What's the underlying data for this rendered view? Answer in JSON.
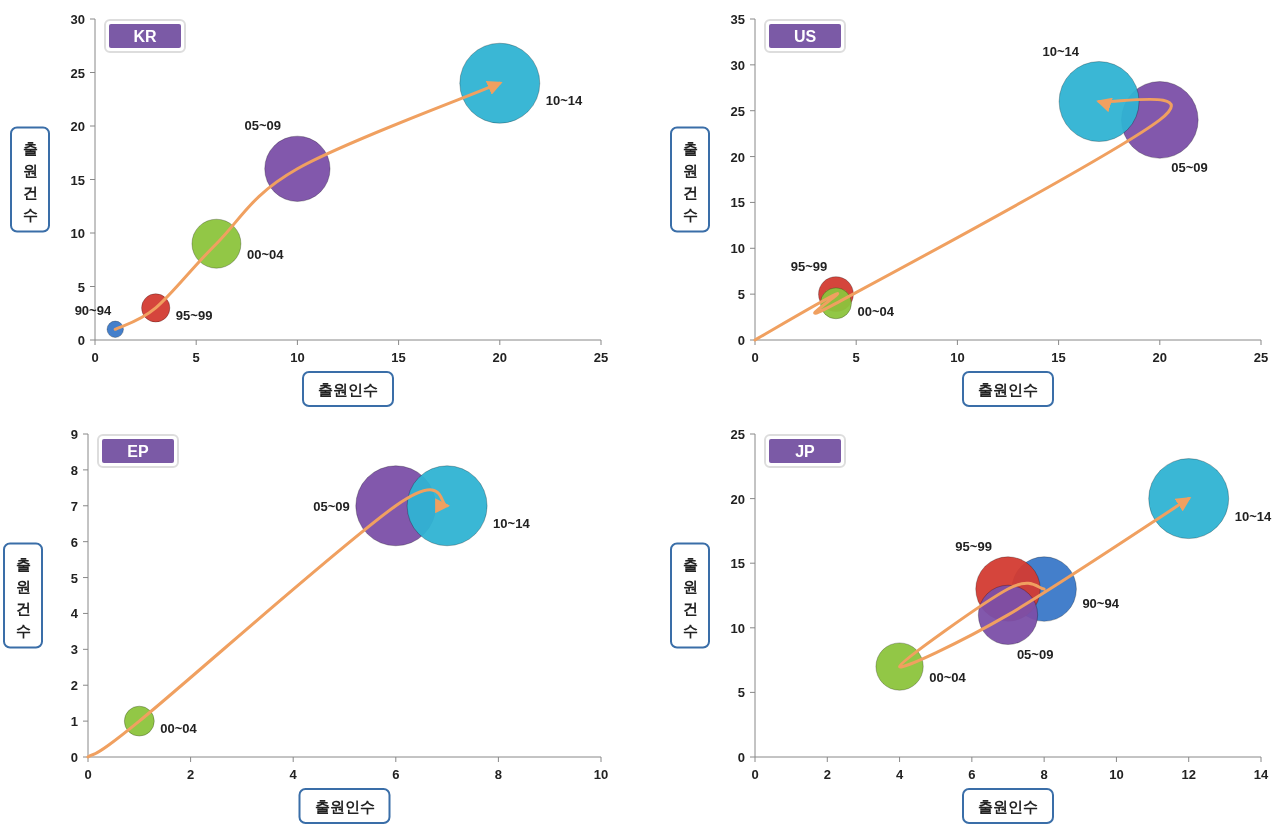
{
  "chart_data": [
    {
      "type": "bubble",
      "title": "KR",
      "xlabel": "출원인수",
      "ylabel": "출원건수",
      "xlim": [
        0,
        25
      ],
      "xticks": [
        0,
        5,
        10,
        15,
        20,
        25
      ],
      "ylim": [
        0,
        30
      ],
      "yticks": [
        0,
        5,
        10,
        15,
        20,
        25,
        30
      ],
      "series": [
        {
          "name": "90~94",
          "color": "#3a78c8",
          "x": [
            1
          ],
          "values": [
            1
          ],
          "sizes": [
            0.042
          ]
        },
        {
          "name": "95~99",
          "color": "#d33b32",
          "x": [
            3
          ],
          "values": [
            3
          ],
          "sizes": [
            0.125
          ]
        },
        {
          "name": "00~04",
          "color": "#8cc43c",
          "x": [
            6
          ],
          "values": [
            9
          ],
          "sizes": [
            0.375
          ]
        },
        {
          "name": "05~09",
          "color": "#7b4fa8",
          "x": [
            10
          ],
          "values": [
            16
          ],
          "sizes": [
            0.667
          ]
        },
        {
          "name": "10~14",
          "color": "#2fb3d3",
          "x": [
            20
          ],
          "values": [
            24
          ],
          "sizes": [
            1
          ]
        },
        {
          "type": "line",
          "color": "#f0a060",
          "x": [
            1,
            3,
            6,
            10,
            20
          ],
          "values": [
            1,
            3,
            9,
            16,
            24
          ]
        }
      ]
    },
    {
      "type": "bubble",
      "title": "US",
      "xlabel": "출원인수",
      "ylabel": "출원건수",
      "xlim": [
        0,
        25
      ],
      "xticks": [
        0,
        5,
        10,
        15,
        20,
        25
      ],
      "ylim": [
        0,
        35
      ],
      "yticks": [
        0,
        5,
        10,
        15,
        20,
        25,
        30,
        35
      ],
      "series": [
        {
          "name": "95~99",
          "color": "#d33b32",
          "x": [
            4
          ],
          "values": [
            5
          ],
          "sizes": [
            0.19
          ]
        },
        {
          "name": "00~04",
          "color": "#8cc43c",
          "x": [
            4
          ],
          "values": [
            4
          ],
          "sizes": [
            0.15
          ]
        },
        {
          "name": "05~09",
          "color": "#7b4fa8",
          "x": [
            20
          ],
          "values": [
            24
          ],
          "sizes": [
            0.92
          ]
        },
        {
          "name": "10~14",
          "color": "#2fb3d3",
          "x": [
            17
          ],
          "values": [
            26
          ],
          "sizes": [
            1
          ]
        },
        {
          "type": "line",
          "color": "#f0a060",
          "x": [
            0,
            4,
            4,
            20,
            17
          ],
          "values": [
            0,
            5,
            4,
            24,
            26
          ]
        }
      ]
    },
    {
      "type": "bubble",
      "title": "EP",
      "xlabel": "출원인수",
      "ylabel": "출원건수",
      "xlim": [
        0,
        10
      ],
      "xticks": [
        0,
        2,
        4,
        6,
        8,
        10
      ],
      "ylim": [
        0,
        9
      ],
      "yticks": [
        0,
        1,
        2,
        3,
        4,
        5,
        6,
        7,
        8,
        9
      ],
      "series": [
        {
          "name": "00~04",
          "color": "#8cc43c",
          "x": [
            1
          ],
          "values": [
            1
          ],
          "sizes": [
            0.14
          ]
        },
        {
          "name": "05~09",
          "color": "#7b4fa8",
          "x": [
            6
          ],
          "values": [
            7
          ],
          "sizes": [
            1
          ]
        },
        {
          "name": "10~14",
          "color": "#2fb3d3",
          "x": [
            7
          ],
          "values": [
            7
          ],
          "sizes": [
            1
          ]
        },
        {
          "type": "line",
          "color": "#f0a060",
          "x": [
            0,
            1,
            6,
            7
          ],
          "values": [
            0,
            1,
            7,
            7
          ]
        }
      ]
    },
    {
      "type": "bubble",
      "title": "JP",
      "xlabel": "출원인수",
      "ylabel": "출원건수",
      "xlim": [
        0,
        14
      ],
      "xticks": [
        0,
        2,
        4,
        6,
        8,
        10,
        12,
        14
      ],
      "ylim": [
        0,
        25
      ],
      "yticks": [
        0,
        5,
        10,
        15,
        20,
        25
      ],
      "series": [
        {
          "name": "90~94",
          "color": "#3a78c8",
          "x": [
            8
          ],
          "values": [
            13
          ],
          "sizes": [
            0.65
          ]
        },
        {
          "name": "95~99",
          "color": "#d33b32",
          "x": [
            7
          ],
          "values": [
            13
          ],
          "sizes": [
            0.65
          ]
        },
        {
          "name": "05~09",
          "color": "#7b4fa8",
          "x": [
            7
          ],
          "values": [
            11
          ],
          "sizes": [
            0.55
          ]
        },
        {
          "name": "00~04",
          "color": "#8cc43c",
          "x": [
            4
          ],
          "values": [
            7
          ],
          "sizes": [
            0.35
          ]
        },
        {
          "name": "10~14",
          "color": "#2fb3d3",
          "x": [
            12
          ],
          "values": [
            20
          ],
          "sizes": [
            1
          ]
        },
        {
          "type": "line",
          "color": "#f0a060",
          "x": [
            8,
            7,
            4,
            7,
            12
          ],
          "values": [
            13,
            13,
            7,
            11,
            20
          ]
        }
      ]
    }
  ]
}
